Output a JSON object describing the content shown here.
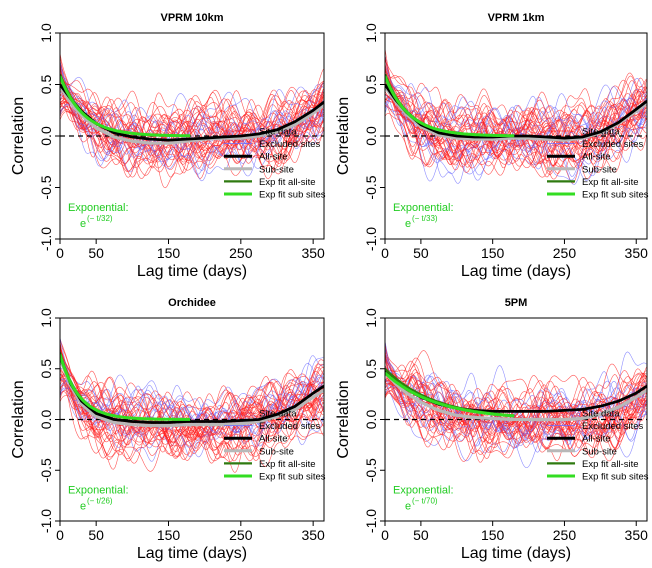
{
  "figure": {
    "colors": {
      "site": "#ff2222",
      "excluded": "#6a6aff",
      "all_site": "#000000",
      "sub_site": "#b8b8b8",
      "exp_all": "#2f7a10",
      "exp_sub": "#33dd22",
      "zero_line": "#000000",
      "exponential_text": "#22cc22"
    }
  },
  "chart_data": [
    {
      "type": "line",
      "title": "VPRM 10km",
      "xlabel": "Lag time (days)",
      "ylabel": "Correlation",
      "xlim": [
        0,
        365
      ],
      "ylim": [
        -1.0,
        1.0
      ],
      "xticks": [
        "0",
        "50",
        "150",
        "250",
        "350"
      ],
      "yticks": [
        "-1.0",
        "-0.5",
        "0.0",
        "0.5",
        "1.0"
      ],
      "grid": false,
      "legend_position": "bottom-right",
      "legend": [
        "Site data",
        "Excluded sites",
        "All-site",
        "Sub-site",
        "Exp fit all-site",
        "Exp fit sub sites"
      ],
      "annotation": {
        "label": "Exponential:",
        "formula_base": "e",
        "formula_exponent": "(− t/32)"
      },
      "series": [
        {
          "name": "All-site",
          "x": [
            0,
            15,
            30,
            50,
            75,
            100,
            125,
            150,
            175,
            200,
            225,
            250,
            275,
            300,
            325,
            350,
            365
          ],
          "y": [
            0.5,
            0.36,
            0.24,
            0.12,
            0.03,
            -0.01,
            -0.03,
            -0.04,
            -0.03,
            -0.02,
            -0.01,
            0.0,
            0.02,
            0.06,
            0.14,
            0.25,
            0.33
          ]
        },
        {
          "name": "Sub-site",
          "x": [
            0,
            15,
            30,
            50,
            75,
            100,
            125,
            150,
            175,
            200,
            225,
            250,
            275,
            300,
            325,
            350,
            365
          ],
          "y": [
            0.48,
            0.32,
            0.2,
            0.08,
            -0.01,
            -0.05,
            -0.07,
            -0.07,
            -0.05,
            -0.03,
            -0.02,
            -0.02,
            0.0,
            0.04,
            0.11,
            0.22,
            0.3
          ]
        },
        {
          "name": "Exp fit all-site",
          "fit": "exponential",
          "tau": 32,
          "amplitude": 0.6,
          "x_range": [
            0,
            180
          ]
        },
        {
          "name": "Exp fit sub sites",
          "fit": "exponential",
          "tau": 32,
          "amplitude": 0.58,
          "x_range": [
            0,
            180
          ]
        }
      ]
    },
    {
      "type": "line",
      "title": "VPRM 1km",
      "xlabel": "Lag time (days)",
      "ylabel": "Correlation",
      "xlim": [
        0,
        365
      ],
      "ylim": [
        -1.0,
        1.0
      ],
      "xticks": [
        "0",
        "50",
        "150",
        "250",
        "350"
      ],
      "yticks": [
        "-1.0",
        "-0.5",
        "0.0",
        "0.5",
        "1.0"
      ],
      "grid": false,
      "legend_position": "bottom-right",
      "legend": [
        "Site data",
        "Excluded sites",
        "All-site",
        "Sub-site",
        "Exp fit all-site",
        "Exp fit sub sites"
      ],
      "annotation": {
        "label": "Exponential:",
        "formula_base": "e",
        "formula_exponent": "(− t/33)"
      },
      "series": [
        {
          "name": "All-site",
          "x": [
            0,
            15,
            30,
            50,
            75,
            100,
            125,
            150,
            175,
            200,
            225,
            250,
            275,
            300,
            325,
            350,
            365
          ],
          "y": [
            0.5,
            0.35,
            0.23,
            0.11,
            0.03,
            0.0,
            -0.01,
            -0.01,
            0.0,
            0.0,
            -0.01,
            -0.02,
            -0.01,
            0.04,
            0.13,
            0.26,
            0.34
          ]
        },
        {
          "name": "Sub-site",
          "x": [
            0,
            15,
            30,
            50,
            75,
            100,
            125,
            150,
            175,
            200,
            225,
            250,
            275,
            300,
            325,
            350,
            365
          ],
          "y": [
            0.48,
            0.33,
            0.21,
            0.09,
            0.01,
            -0.02,
            -0.03,
            -0.03,
            -0.02,
            -0.02,
            -0.03,
            -0.04,
            -0.02,
            0.03,
            0.12,
            0.24,
            0.32
          ]
        },
        {
          "name": "Exp fit all-site",
          "fit": "exponential",
          "tau": 33,
          "amplitude": 0.6,
          "x_range": [
            0,
            180
          ]
        },
        {
          "name": "Exp fit sub sites",
          "fit": "exponential",
          "tau": 33,
          "amplitude": 0.58,
          "x_range": [
            0,
            180
          ]
        }
      ]
    },
    {
      "type": "line",
      "title": "Orchidee",
      "xlabel": "Lag time (days)",
      "ylabel": "Correlation",
      "xlim": [
        0,
        365
      ],
      "ylim": [
        -1.0,
        1.0
      ],
      "xticks": [
        "0",
        "50",
        "150",
        "250",
        "350"
      ],
      "yticks": [
        "-1.0",
        "-0.5",
        "0.0",
        "0.5",
        "1.0"
      ],
      "grid": false,
      "legend_position": "bottom-right",
      "legend": [
        "Site data",
        "Excluded sites",
        "All-site",
        "Sub-site",
        "Exp fit all-site",
        "Exp fit sub sites"
      ],
      "annotation": {
        "label": "Exponential:",
        "formula_base": "e",
        "formula_exponent": "(− t/26)"
      },
      "series": [
        {
          "name": "All-site",
          "x": [
            0,
            15,
            30,
            50,
            75,
            100,
            125,
            150,
            175,
            200,
            225,
            250,
            275,
            300,
            325,
            350,
            365
          ],
          "y": [
            0.62,
            0.35,
            0.18,
            0.06,
            0.0,
            -0.02,
            -0.03,
            -0.03,
            -0.02,
            -0.02,
            -0.02,
            -0.01,
            0.0,
            0.05,
            0.13,
            0.26,
            0.33
          ]
        },
        {
          "name": "Sub-site",
          "x": [
            0,
            15,
            30,
            50,
            75,
            100,
            125,
            150,
            175,
            200,
            225,
            250,
            275,
            300,
            325,
            350,
            365
          ],
          "y": [
            0.6,
            0.33,
            0.15,
            0.03,
            -0.03,
            -0.05,
            -0.06,
            -0.06,
            -0.05,
            -0.05,
            -0.05,
            -0.04,
            -0.02,
            0.03,
            0.1,
            0.22,
            0.29
          ]
        },
        {
          "name": "Exp fit all-site",
          "fit": "exponential",
          "tau": 26,
          "amplitude": 0.66,
          "x_range": [
            0,
            180
          ]
        },
        {
          "name": "Exp fit sub sites",
          "fit": "exponential",
          "tau": 26,
          "amplitude": 0.64,
          "x_range": [
            0,
            180
          ]
        }
      ]
    },
    {
      "type": "line",
      "title": "5PM",
      "xlabel": "Lag time (days)",
      "ylabel": "Correlation",
      "xlim": [
        0,
        365
      ],
      "ylim": [
        -1.0,
        1.0
      ],
      "xticks": [
        "0",
        "50",
        "150",
        "250",
        "350"
      ],
      "yticks": [
        "-1.0",
        "-0.5",
        "0.0",
        "0.5",
        "1.0"
      ],
      "grid": false,
      "legend_position": "bottom-right",
      "legend": [
        "Site data",
        "Excluded sites",
        "All-site",
        "Sub-site",
        "Exp fit all-site",
        "Exp fit sub sites"
      ],
      "annotation": {
        "label": "Exponential:",
        "formula_base": "e",
        "formula_exponent": "(− t/70)"
      },
      "series": [
        {
          "name": "All-site",
          "x": [
            0,
            15,
            30,
            50,
            75,
            100,
            125,
            150,
            175,
            200,
            225,
            250,
            275,
            300,
            325,
            350,
            365
          ],
          "y": [
            0.48,
            0.38,
            0.3,
            0.22,
            0.15,
            0.11,
            0.09,
            0.08,
            0.08,
            0.08,
            0.08,
            0.09,
            0.1,
            0.13,
            0.18,
            0.26,
            0.33
          ]
        },
        {
          "name": "Sub-site",
          "x": [
            0,
            15,
            30,
            50,
            75,
            100,
            125,
            150,
            175,
            200,
            225,
            250,
            275,
            300,
            325,
            350,
            365
          ],
          "y": [
            0.46,
            0.35,
            0.26,
            0.17,
            0.09,
            0.04,
            0.02,
            0.01,
            0.0,
            0.0,
            0.0,
            0.0,
            0.01,
            0.05,
            0.12,
            0.22,
            0.29
          ]
        },
        {
          "name": "Exp fit all-site",
          "fit": "exponential",
          "tau": 70,
          "amplitude": 0.5,
          "x_range": [
            0,
            180
          ]
        },
        {
          "name": "Exp fit sub sites",
          "fit": "exponential",
          "tau": 70,
          "amplitude": 0.46,
          "x_range": [
            0,
            180
          ]
        }
      ]
    }
  ]
}
